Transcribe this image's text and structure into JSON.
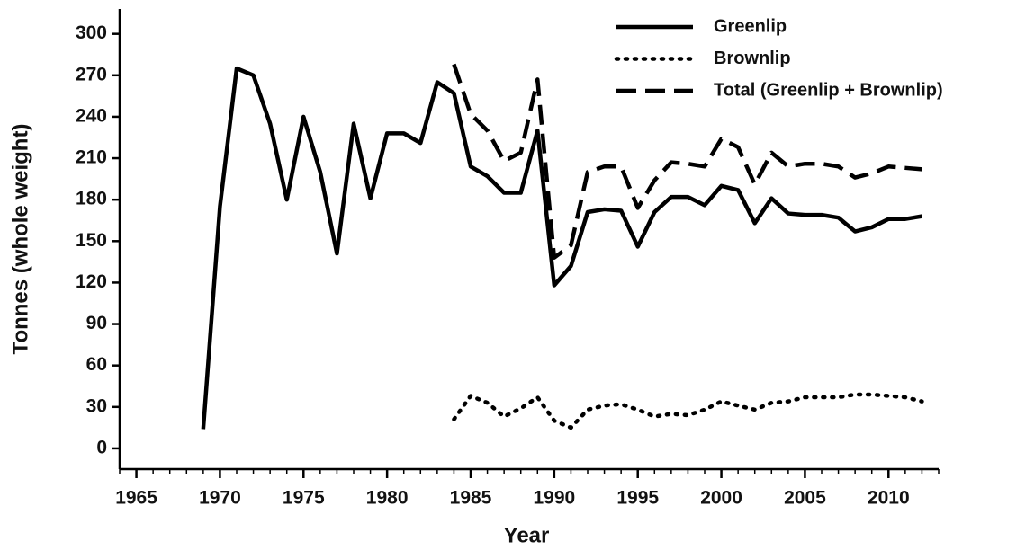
{
  "chart_data": {
    "type": "line",
    "xlabel": "Year",
    "ylabel": "Tonnes (whole weight)",
    "x": [
      1969,
      1970,
      1971,
      1972,
      1973,
      1974,
      1975,
      1976,
      1977,
      1978,
      1979,
      1980,
      1981,
      1982,
      1983,
      1984,
      1985,
      1986,
      1987,
      1988,
      1989,
      1990,
      1991,
      1992,
      1993,
      1994,
      1995,
      1996,
      1997,
      1998,
      1999,
      2000,
      2001,
      2002,
      2003,
      2004,
      2005,
      2006,
      2007,
      2008,
      2009,
      2010,
      2011,
      2012
    ],
    "series": [
      {
        "name": "Greenlip",
        "color": "#000000",
        "dash": "solid",
        "values": [
          14,
          175,
          275,
          270,
          235,
          180,
          240,
          200,
          141,
          235,
          181,
          228,
          228,
          221,
          265,
          257,
          204,
          197,
          185,
          185,
          230,
          118,
          132,
          171,
          173,
          172,
          146,
          171,
          182,
          182,
          176,
          190,
          187,
          163,
          181,
          170,
          169,
          169,
          167,
          157,
          160,
          166,
          166,
          168
        ]
      },
      {
        "name": "Brownlip",
        "color": "#000000",
        "dash": "dotted",
        "values": [
          null,
          null,
          null,
          null,
          null,
          null,
          null,
          null,
          null,
          null,
          null,
          null,
          null,
          null,
          null,
          21,
          38,
          33,
          23,
          29,
          37,
          20,
          15,
          28,
          31,
          32,
          28,
          23,
          25,
          24,
          28,
          34,
          31,
          28,
          33,
          34,
          37,
          37,
          37,
          39,
          39,
          38,
          37,
          34
        ]
      },
      {
        "name": "Total (Greenlip + Brownlip)",
        "color": "#000000",
        "dash": "dashed",
        "values": [
          null,
          null,
          null,
          null,
          null,
          null,
          null,
          null,
          null,
          null,
          null,
          null,
          null,
          null,
          null,
          278,
          242,
          230,
          208,
          214,
          267,
          138,
          147,
          200,
          204,
          204,
          174,
          194,
          207,
          206,
          204,
          224,
          218,
          191,
          214,
          204,
          206,
          206,
          204,
          196,
          199,
          204,
          203,
          202
        ]
      }
    ],
    "xlim": [
      1964,
      2013
    ],
    "xticks": [
      1965,
      1970,
      1975,
      1980,
      1985,
      1990,
      1995,
      2000,
      2005,
      2010
    ],
    "ylim": [
      -15,
      318
    ],
    "yticks": [
      0,
      30,
      60,
      90,
      120,
      150,
      180,
      210,
      240,
      270,
      300
    ],
    "grid": false,
    "legend": "top-right"
  }
}
